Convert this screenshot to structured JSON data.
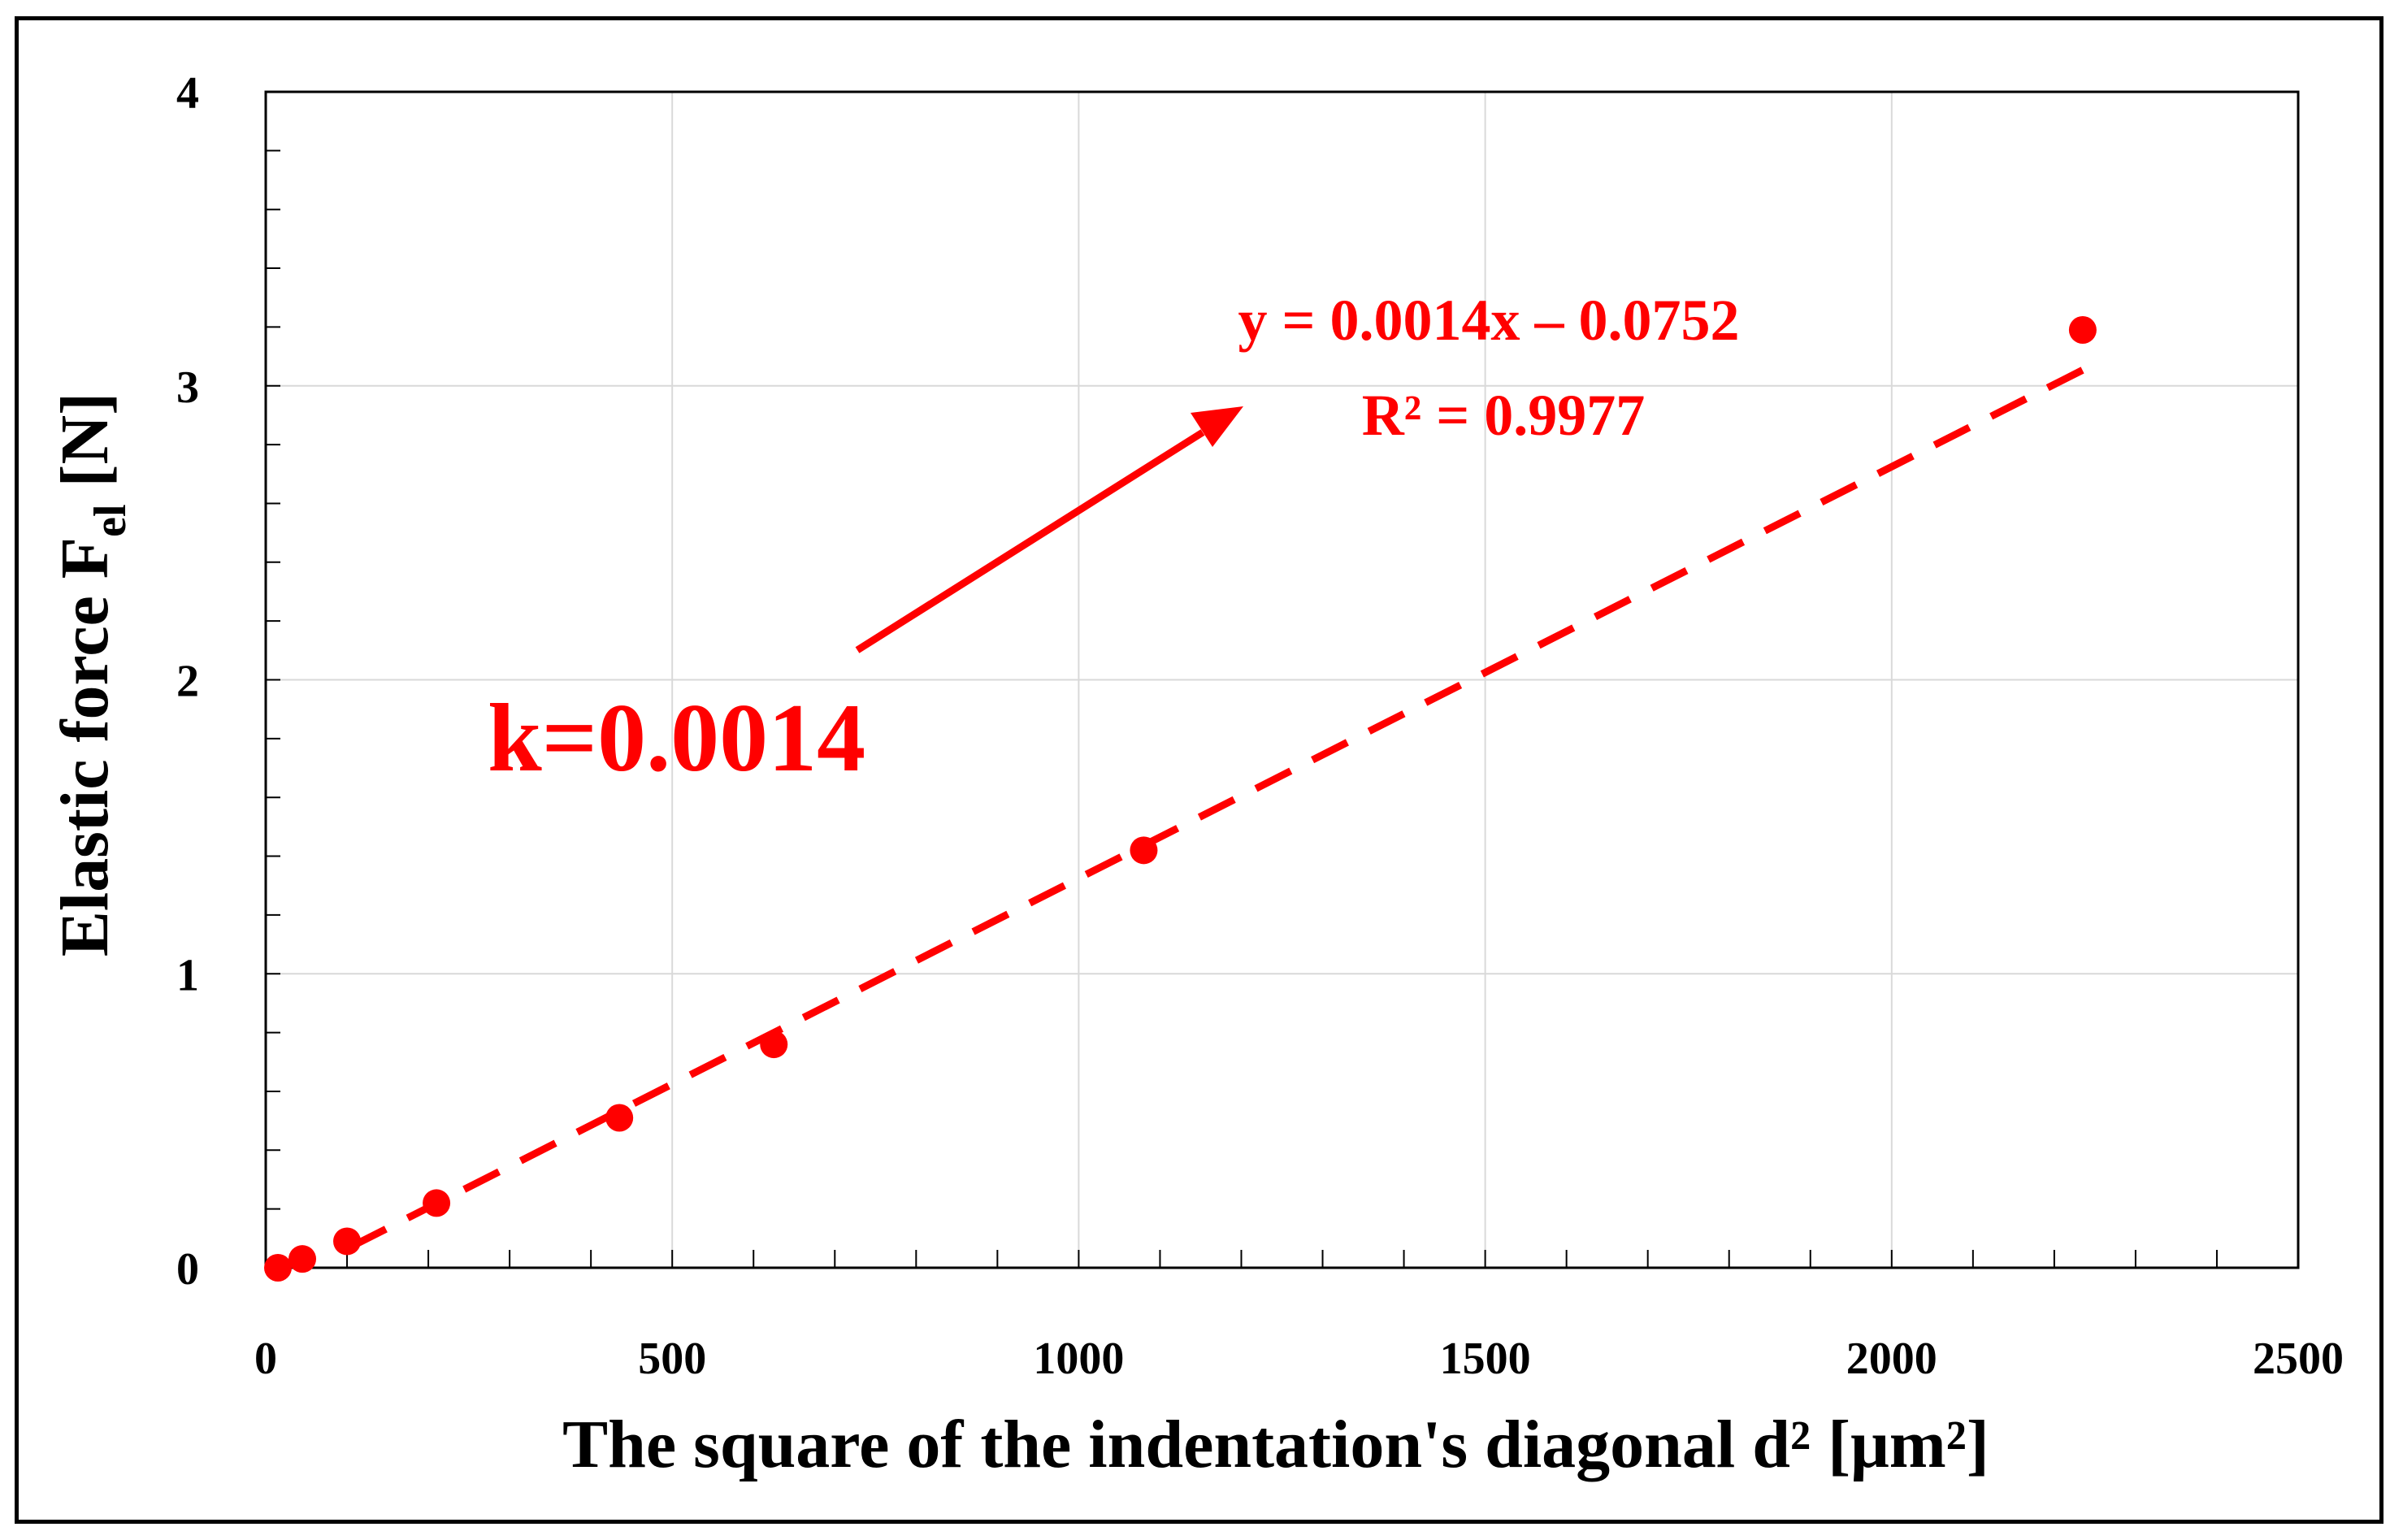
{
  "chart_data": {
    "type": "scatter",
    "title": "",
    "xlabel": "The square of the indentation's diagonal d² [μm²]",
    "ylabel": {
      "main": "Elastic force F",
      "subscript": "el",
      "unit": " [N]"
    },
    "xlim": [
      0,
      2500
    ],
    "ylim": [
      0,
      4
    ],
    "xticks": [
      "0",
      "500",
      "1000",
      "1500",
      "2000",
      "2500"
    ],
    "yticks": [
      "0",
      "1",
      "2",
      "3",
      "4"
    ],
    "grid": true,
    "series": [
      {
        "x": [
          15,
          45,
          100,
          210,
          435,
          625,
          1080,
          2235
        ],
        "y": [
          0.0,
          0.03,
          0.09,
          0.22,
          0.51,
          0.76,
          1.42,
          3.19
        ],
        "color": "#ff0000",
        "marker": "circle"
      }
    ],
    "trendline": {
      "slope": 0.0014,
      "intercept": -0.0752,
      "x_range": [
        105,
        2235
      ],
      "style": "dashed",
      "color": "#ff0000"
    },
    "annotations": {
      "equation": "y = 0.0014x – 0.0752",
      "r_squared": "R² = 0.9977",
      "slope_label": "k=0.0014"
    }
  }
}
